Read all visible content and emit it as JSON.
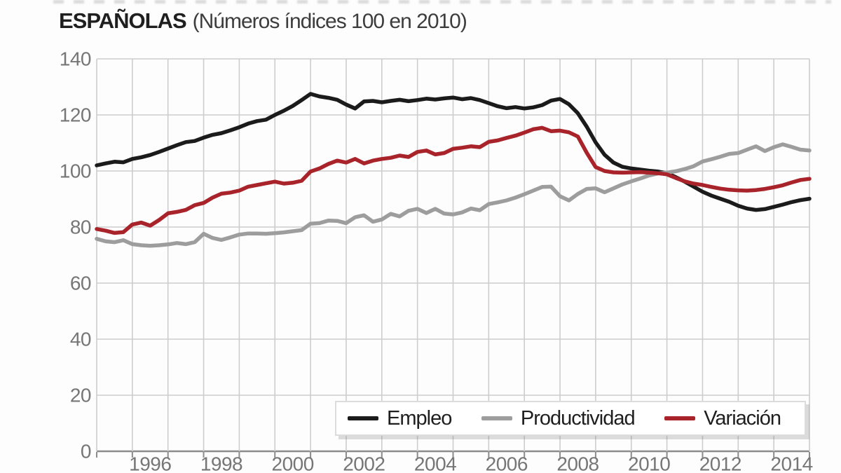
{
  "title": {
    "main": "ESPAÑOLAS",
    "subtitle": "(Números índices 100 en 2010)"
  },
  "colors": {
    "empleo": "#1b1b1b",
    "productividad": "#9d9d9d",
    "variacion": "#a8232a",
    "grid": "#cdcdcd",
    "axis": "#8c8c8c",
    "tick_label": "#767676"
  },
  "legend": {
    "items": [
      {
        "label": "Empleo",
        "series": "empleo"
      },
      {
        "label": "Productividad",
        "series": "productividad"
      },
      {
        "label": "Variación",
        "series": "variacion"
      }
    ]
  },
  "axes": {
    "y_tick_labels": [
      "140",
      "120",
      "100",
      "80",
      "60",
      "40",
      "20",
      "0"
    ],
    "x_tick_labels": [
      "1996",
      "1998",
      "2000",
      "2002",
      "2004",
      "2006",
      "2008",
      "2010",
      "2012",
      "2014"
    ]
  },
  "chart_data": {
    "type": "line",
    "title": "ESPAÑOLAS (Números índices 100 en 2010)",
    "xlabel": "",
    "ylabel": "",
    "x_start": 1995.0,
    "x_step": 0.25,
    "xlim": [
      1995,
      2015
    ],
    "ylim": [
      0,
      140
    ],
    "y_ticks": [
      0,
      20,
      40,
      60,
      80,
      100,
      120,
      140
    ],
    "x_label_years": [
      1996,
      1998,
      2000,
      2002,
      2004,
      2006,
      2008,
      2010,
      2012,
      2014
    ],
    "grid": true,
    "legend_position": "inside-bottom-right",
    "series": [
      {
        "name": "Empleo",
        "color": "#1b1b1b",
        "values": [
          102.0,
          102.7,
          103.3,
          103.1,
          104.3,
          104.9,
          105.7,
          106.8,
          108.0,
          109.2,
          110.3,
          110.7,
          111.9,
          112.9,
          113.5,
          114.5,
          115.6,
          116.9,
          117.8,
          118.3,
          120.0,
          121.5,
          123.2,
          125.3,
          127.5,
          126.6,
          126.1,
          125.4,
          123.7,
          122.3,
          124.8,
          125.0,
          124.5,
          125.0,
          125.4,
          124.9,
          125.3,
          125.8,
          125.5,
          125.9,
          126.2,
          125.6,
          126.0,
          125.3,
          124.2,
          123.1,
          122.4,
          122.8,
          122.3,
          122.7,
          123.5,
          125.1,
          125.7,
          123.8,
          120.6,
          115.8,
          110.2,
          105.8,
          103.0,
          101.5,
          100.9,
          100.5,
          100.1,
          99.8,
          99.2,
          97.8,
          96.2,
          94.4,
          92.6,
          91.2,
          90.1,
          89.0,
          87.6,
          86.6,
          86.1,
          86.4,
          87.2,
          88.0,
          88.9,
          89.6,
          90.1
        ]
      },
      {
        "name": "Productividad",
        "color": "#9d9d9d",
        "values": [
          75.8,
          74.9,
          74.6,
          75.3,
          73.9,
          73.5,
          73.3,
          73.5,
          73.8,
          74.3,
          73.9,
          74.6,
          77.6,
          76.1,
          75.4,
          76.3,
          77.3,
          77.7,
          77.7,
          77.6,
          77.8,
          78.1,
          78.5,
          78.9,
          81.2,
          81.4,
          82.3,
          82.2,
          81.4,
          83.5,
          84.2,
          81.9,
          82.7,
          84.7,
          83.8,
          85.8,
          86.5,
          85.0,
          86.5,
          84.8,
          84.5,
          85.2,
          86.6,
          86.0,
          88.2,
          88.8,
          89.5,
          90.5,
          91.7,
          93.0,
          94.3,
          94.4,
          91.0,
          89.5,
          91.8,
          93.6,
          93.8,
          92.4,
          93.8,
          95.2,
          96.3,
          97.3,
          98.4,
          99.1,
          99.4,
          99.9,
          100.7,
          101.7,
          103.4,
          104.2,
          105.1,
          106.1,
          106.4,
          107.6,
          108.8,
          107.1,
          108.5,
          109.5,
          108.6,
          107.6,
          107.3
        ]
      },
      {
        "name": "Variación",
        "color": "#a8232a",
        "values": [
          79.3,
          78.7,
          77.9,
          78.2,
          80.9,
          81.6,
          80.5,
          82.5,
          84.9,
          85.4,
          86.1,
          87.8,
          88.6,
          90.5,
          91.9,
          92.3,
          93.0,
          94.4,
          95.0,
          95.6,
          96.2,
          95.5,
          95.8,
          96.5,
          99.8,
          100.9,
          102.5,
          103.7,
          103.0,
          104.3,
          102.7,
          103.7,
          104.3,
          104.7,
          105.5,
          105.0,
          106.8,
          107.3,
          105.9,
          106.4,
          107.9,
          108.3,
          108.8,
          108.5,
          110.4,
          110.9,
          111.8,
          112.6,
          113.7,
          114.9,
          115.4,
          114.2,
          114.4,
          113.8,
          112.3,
          106.5,
          101.4,
          100.0,
          99.5,
          99.4,
          99.5,
          99.6,
          99.4,
          99.2,
          98.8,
          97.5,
          96.3,
          95.5,
          95.0,
          94.3,
          93.7,
          93.3,
          93.1,
          93.0,
          93.2,
          93.6,
          94.2,
          94.9,
          95.9,
          96.8,
          97.2
        ]
      }
    ]
  }
}
